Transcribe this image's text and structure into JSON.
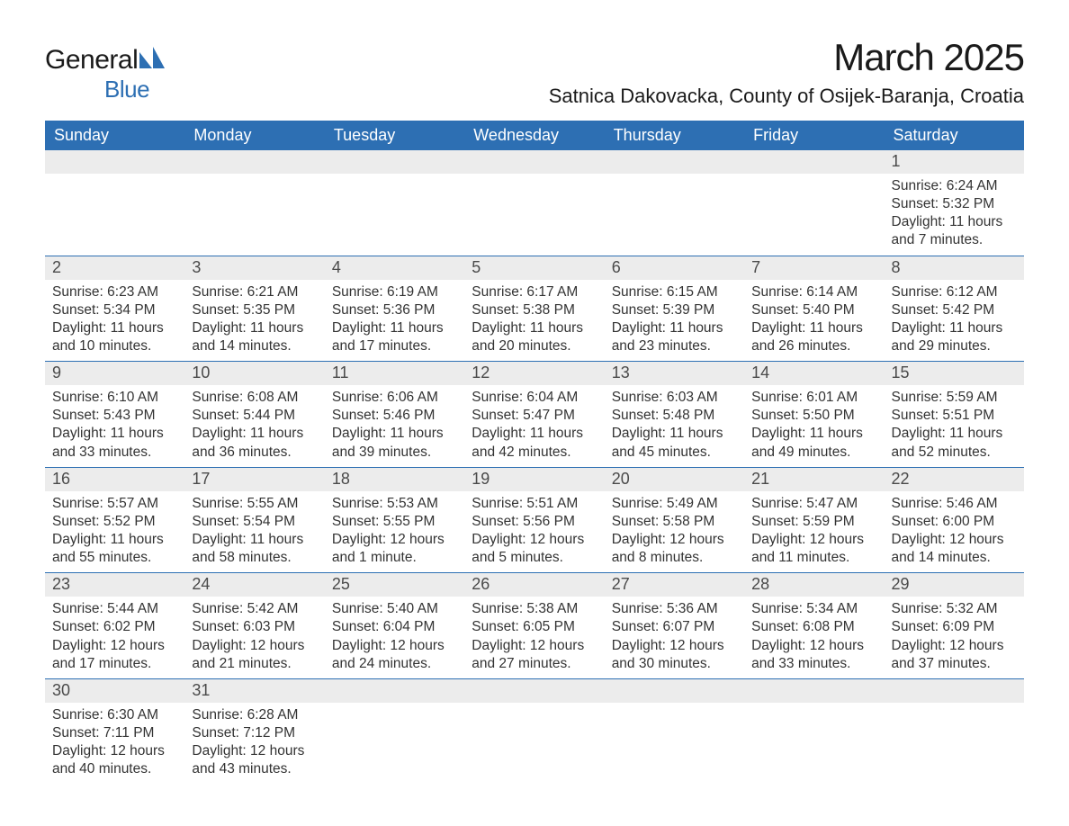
{
  "brand": {
    "word1": "General",
    "word2": "Blue",
    "accent_color": "#2d6fb3"
  },
  "title": "March 2025",
  "location": "Satnica Dakovacka, County of Osijek-Baranja, Croatia",
  "header_bg": "#2d6fb3",
  "header_fg": "#ffffff",
  "daynum_bg": "#ececec",
  "week_border_color": "#2d6fb3",
  "text_color": "#333333",
  "weekday_labels": [
    "Sunday",
    "Monday",
    "Tuesday",
    "Wednesday",
    "Thursday",
    "Friday",
    "Saturday"
  ],
  "weeks": [
    [
      {
        "blank": true
      },
      {
        "blank": true
      },
      {
        "blank": true
      },
      {
        "blank": true
      },
      {
        "blank": true
      },
      {
        "blank": true
      },
      {
        "day": "1",
        "sunrise": "Sunrise: 6:24 AM",
        "sunset": "Sunset: 5:32 PM",
        "daylight1": "Daylight: 11 hours",
        "daylight2": "and 7 minutes."
      }
    ],
    [
      {
        "day": "2",
        "sunrise": "Sunrise: 6:23 AM",
        "sunset": "Sunset: 5:34 PM",
        "daylight1": "Daylight: 11 hours",
        "daylight2": "and 10 minutes."
      },
      {
        "day": "3",
        "sunrise": "Sunrise: 6:21 AM",
        "sunset": "Sunset: 5:35 PM",
        "daylight1": "Daylight: 11 hours",
        "daylight2": "and 14 minutes."
      },
      {
        "day": "4",
        "sunrise": "Sunrise: 6:19 AM",
        "sunset": "Sunset: 5:36 PM",
        "daylight1": "Daylight: 11 hours",
        "daylight2": "and 17 minutes."
      },
      {
        "day": "5",
        "sunrise": "Sunrise: 6:17 AM",
        "sunset": "Sunset: 5:38 PM",
        "daylight1": "Daylight: 11 hours",
        "daylight2": "and 20 minutes."
      },
      {
        "day": "6",
        "sunrise": "Sunrise: 6:15 AM",
        "sunset": "Sunset: 5:39 PM",
        "daylight1": "Daylight: 11 hours",
        "daylight2": "and 23 minutes."
      },
      {
        "day": "7",
        "sunrise": "Sunrise: 6:14 AM",
        "sunset": "Sunset: 5:40 PM",
        "daylight1": "Daylight: 11 hours",
        "daylight2": "and 26 minutes."
      },
      {
        "day": "8",
        "sunrise": "Sunrise: 6:12 AM",
        "sunset": "Sunset: 5:42 PM",
        "daylight1": "Daylight: 11 hours",
        "daylight2": "and 29 minutes."
      }
    ],
    [
      {
        "day": "9",
        "sunrise": "Sunrise: 6:10 AM",
        "sunset": "Sunset: 5:43 PM",
        "daylight1": "Daylight: 11 hours",
        "daylight2": "and 33 minutes."
      },
      {
        "day": "10",
        "sunrise": "Sunrise: 6:08 AM",
        "sunset": "Sunset: 5:44 PM",
        "daylight1": "Daylight: 11 hours",
        "daylight2": "and 36 minutes."
      },
      {
        "day": "11",
        "sunrise": "Sunrise: 6:06 AM",
        "sunset": "Sunset: 5:46 PM",
        "daylight1": "Daylight: 11 hours",
        "daylight2": "and 39 minutes."
      },
      {
        "day": "12",
        "sunrise": "Sunrise: 6:04 AM",
        "sunset": "Sunset: 5:47 PM",
        "daylight1": "Daylight: 11 hours",
        "daylight2": "and 42 minutes."
      },
      {
        "day": "13",
        "sunrise": "Sunrise: 6:03 AM",
        "sunset": "Sunset: 5:48 PM",
        "daylight1": "Daylight: 11 hours",
        "daylight2": "and 45 minutes."
      },
      {
        "day": "14",
        "sunrise": "Sunrise: 6:01 AM",
        "sunset": "Sunset: 5:50 PM",
        "daylight1": "Daylight: 11 hours",
        "daylight2": "and 49 minutes."
      },
      {
        "day": "15",
        "sunrise": "Sunrise: 5:59 AM",
        "sunset": "Sunset: 5:51 PM",
        "daylight1": "Daylight: 11 hours",
        "daylight2": "and 52 minutes."
      }
    ],
    [
      {
        "day": "16",
        "sunrise": "Sunrise: 5:57 AM",
        "sunset": "Sunset: 5:52 PM",
        "daylight1": "Daylight: 11 hours",
        "daylight2": "and 55 minutes."
      },
      {
        "day": "17",
        "sunrise": "Sunrise: 5:55 AM",
        "sunset": "Sunset: 5:54 PM",
        "daylight1": "Daylight: 11 hours",
        "daylight2": "and 58 minutes."
      },
      {
        "day": "18",
        "sunrise": "Sunrise: 5:53 AM",
        "sunset": "Sunset: 5:55 PM",
        "daylight1": "Daylight: 12 hours",
        "daylight2": "and 1 minute."
      },
      {
        "day": "19",
        "sunrise": "Sunrise: 5:51 AM",
        "sunset": "Sunset: 5:56 PM",
        "daylight1": "Daylight: 12 hours",
        "daylight2": "and 5 minutes."
      },
      {
        "day": "20",
        "sunrise": "Sunrise: 5:49 AM",
        "sunset": "Sunset: 5:58 PM",
        "daylight1": "Daylight: 12 hours",
        "daylight2": "and 8 minutes."
      },
      {
        "day": "21",
        "sunrise": "Sunrise: 5:47 AM",
        "sunset": "Sunset: 5:59 PM",
        "daylight1": "Daylight: 12 hours",
        "daylight2": "and 11 minutes."
      },
      {
        "day": "22",
        "sunrise": "Sunrise: 5:46 AM",
        "sunset": "Sunset: 6:00 PM",
        "daylight1": "Daylight: 12 hours",
        "daylight2": "and 14 minutes."
      }
    ],
    [
      {
        "day": "23",
        "sunrise": "Sunrise: 5:44 AM",
        "sunset": "Sunset: 6:02 PM",
        "daylight1": "Daylight: 12 hours",
        "daylight2": "and 17 minutes."
      },
      {
        "day": "24",
        "sunrise": "Sunrise: 5:42 AM",
        "sunset": "Sunset: 6:03 PM",
        "daylight1": "Daylight: 12 hours",
        "daylight2": "and 21 minutes."
      },
      {
        "day": "25",
        "sunrise": "Sunrise: 5:40 AM",
        "sunset": "Sunset: 6:04 PM",
        "daylight1": "Daylight: 12 hours",
        "daylight2": "and 24 minutes."
      },
      {
        "day": "26",
        "sunrise": "Sunrise: 5:38 AM",
        "sunset": "Sunset: 6:05 PM",
        "daylight1": "Daylight: 12 hours",
        "daylight2": "and 27 minutes."
      },
      {
        "day": "27",
        "sunrise": "Sunrise: 5:36 AM",
        "sunset": "Sunset: 6:07 PM",
        "daylight1": "Daylight: 12 hours",
        "daylight2": "and 30 minutes."
      },
      {
        "day": "28",
        "sunrise": "Sunrise: 5:34 AM",
        "sunset": "Sunset: 6:08 PM",
        "daylight1": "Daylight: 12 hours",
        "daylight2": "and 33 minutes."
      },
      {
        "day": "29",
        "sunrise": "Sunrise: 5:32 AM",
        "sunset": "Sunset: 6:09 PM",
        "daylight1": "Daylight: 12 hours",
        "daylight2": "and 37 minutes."
      }
    ],
    [
      {
        "day": "30",
        "sunrise": "Sunrise: 6:30 AM",
        "sunset": "Sunset: 7:11 PM",
        "daylight1": "Daylight: 12 hours",
        "daylight2": "and 40 minutes."
      },
      {
        "day": "31",
        "sunrise": "Sunrise: 6:28 AM",
        "sunset": "Sunset: 7:12 PM",
        "daylight1": "Daylight: 12 hours",
        "daylight2": "and 43 minutes."
      },
      {
        "blank": true
      },
      {
        "blank": true
      },
      {
        "blank": true
      },
      {
        "blank": true
      },
      {
        "blank": true
      }
    ]
  ]
}
